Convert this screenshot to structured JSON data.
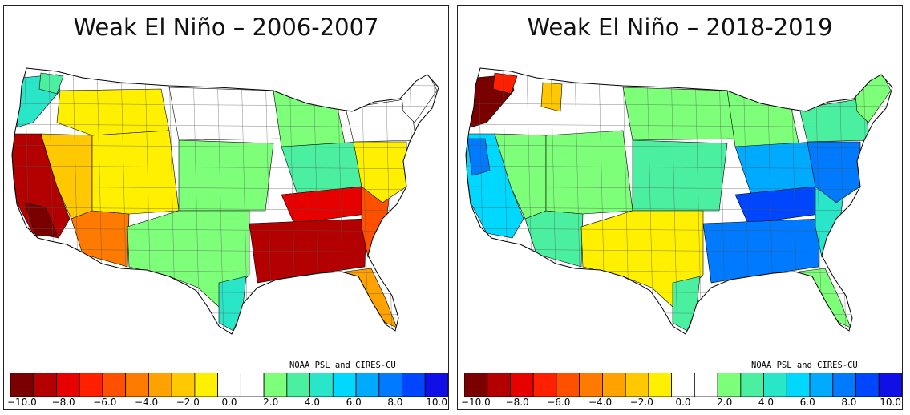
{
  "panels": [
    {
      "title": "Weak El Niño – 2006-2007",
      "credit": "NOAA PSL and CIRES-CU",
      "regions": [
        {
          "region": "Pacific Northwest coast",
          "level": 13
        },
        {
          "region": "Northern Washington",
          "level": 12
        },
        {
          "region": "California",
          "level": 1
        },
        {
          "region": "Southern California coast",
          "level": 0
        },
        {
          "region": "Great Basin / Nevada",
          "level": 7
        },
        {
          "region": "Arizona",
          "level": 5
        },
        {
          "region": "Idaho / Montana west",
          "level": 8
        },
        {
          "region": "Utah / Colorado",
          "level": 8
        },
        {
          "region": "Northern Plains",
          "level": 10
        },
        {
          "region": "Central Plains",
          "level": 11
        },
        {
          "region": "Texas",
          "level": 11
        },
        {
          "region": "South Texas coast",
          "level": 13
        },
        {
          "region": "Upper Midwest",
          "level": 11
        },
        {
          "region": "Ohio Valley",
          "level": 12
        },
        {
          "region": "Tennessee Valley",
          "level": 2
        },
        {
          "region": "Deep South",
          "level": 1
        },
        {
          "region": "Southeast Atlantic",
          "level": 4
        },
        {
          "region": "Florida",
          "level": 6
        },
        {
          "region": "Mid-Atlantic",
          "level": 8
        },
        {
          "region": "Northeast",
          "level": 10
        },
        {
          "region": "Maine",
          "level": 9
        }
      ]
    },
    {
      "title": "Weak El Niño – 2018-2019",
      "credit": "NOAA PSL and CIRES-CU",
      "regions": [
        {
          "region": "Pacific Northwest coast",
          "level": 0
        },
        {
          "region": "Northern Washington",
          "level": 3
        },
        {
          "region": "Northern Idaho",
          "level": 7
        },
        {
          "region": "California",
          "level": 14
        },
        {
          "region": "Northern California coast",
          "level": 16
        },
        {
          "region": "Great Basin / Nevada",
          "level": 11
        },
        {
          "region": "Arizona",
          "level": 12
        },
        {
          "region": "Utah / Colorado",
          "level": 11
        },
        {
          "region": "Northern Plains",
          "level": 11
        },
        {
          "region": "Central Plains",
          "level": 12
        },
        {
          "region": "Texas",
          "level": 8
        },
        {
          "region": "South Texas coast",
          "level": 12
        },
        {
          "region": "Upper Midwest",
          "level": 11
        },
        {
          "region": "Ohio Valley",
          "level": 15
        },
        {
          "region": "Tennessee Valley",
          "level": 17
        },
        {
          "region": "Deep South",
          "level": 16
        },
        {
          "region": "Southeast Atlantic",
          "level": 13
        },
        {
          "region": "Florida",
          "level": 11
        },
        {
          "region": "Mid-Atlantic",
          "level": 16
        },
        {
          "region": "Northeast",
          "level": 12
        },
        {
          "region": "Maine",
          "level": 11
        }
      ]
    }
  ],
  "colorbar": {
    "colors": [
      "#7a0000",
      "#b30000",
      "#e60000",
      "#ff2000",
      "#ff5000",
      "#ff7a00",
      "#ffa200",
      "#ffc800",
      "#fff000",
      "#ffffff",
      "#ffffff",
      "#7dff7a",
      "#4af0a0",
      "#2ae6c8",
      "#00d8ff",
      "#00aaff",
      "#007aff",
      "#0046ff",
      "#1010e6"
    ],
    "tick_labels": [
      "−10.0",
      "−8.0",
      "−6.0",
      "−4.0",
      "−2.0",
      "0.0",
      "2.0",
      "4.0",
      "6.0",
      "8.0",
      "10.0"
    ]
  }
}
